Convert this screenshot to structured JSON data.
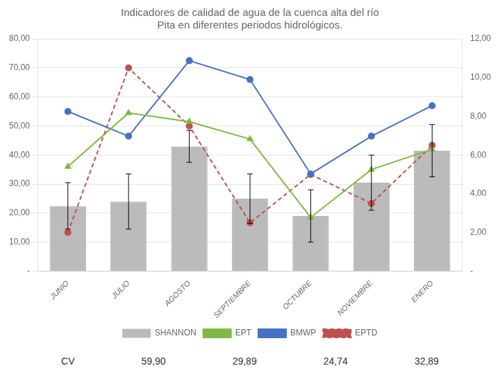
{
  "chart_data": {
    "type": "bar",
    "title": [
      "Indicadores de calidad de agua de la cuenca alta del río",
      "Pita en diferentes periodos hidrológicos."
    ],
    "categories": [
      "JUNIO",
      "JULIO",
      "AGOSTO",
      "SEPTIEMBRE",
      "OCTUBRE",
      "NOVIEMBRE",
      "ENERO"
    ],
    "series": [
      {
        "name": "SHANNON",
        "type": "bar",
        "color": "#bbbbbb",
        "values": [
          22.5,
          24.0,
          43.0,
          25.0,
          19.0,
          30.5,
          41.5
        ],
        "errors": [
          8.0,
          9.5,
          5.5,
          8.5,
          9.0,
          9.5,
          9.0
        ]
      },
      {
        "name": "EPT",
        "type": "line",
        "color": "#7fb942",
        "marker": "triangle",
        "values": [
          36.0,
          54.5,
          51.5,
          45.5,
          18.5,
          35.0,
          42.0
        ]
      },
      {
        "name": "BMWP",
        "type": "line",
        "color": "#4472c4",
        "marker": "circle",
        "values": [
          55.0,
          46.5,
          72.5,
          66.0,
          33.5,
          46.5,
          57.0
        ]
      },
      {
        "name": "EPTD",
        "type": "line",
        "color": "#c0504d",
        "marker": "circle",
        "line_style": "dashed",
        "axis": "y2",
        "values": [
          2.0,
          10.5,
          7.5,
          2.5,
          5.0,
          3.5,
          6.5
        ]
      }
    ],
    "ylim": [
      0,
      80
    ],
    "yticks": [
      {
        "value": 0,
        "label": "-"
      },
      {
        "value": 10,
        "label": "10,00"
      },
      {
        "value": 20,
        "label": "20,00"
      },
      {
        "value": 30,
        "label": "30,00"
      },
      {
        "value": 40,
        "label": "40,00"
      },
      {
        "value": 50,
        "label": "50,00"
      },
      {
        "value": 60,
        "label": "60,00"
      },
      {
        "value": 70,
        "label": "70,00"
      },
      {
        "value": 80,
        "label": "80,00"
      }
    ],
    "y2lim": [
      0,
      12
    ],
    "y2ticks": [
      {
        "value": 0,
        "label": "-"
      },
      {
        "value": 2,
        "label": "2,00"
      },
      {
        "value": 4,
        "label": "4,00"
      },
      {
        "value": 6,
        "label": "6,00"
      },
      {
        "value": 8,
        "label": "8,00"
      },
      {
        "value": 10,
        "label": "10,00"
      },
      {
        "value": 12,
        "label": "12,00"
      }
    ],
    "grid": true,
    "legend": "bottom",
    "annotations": [
      "CV",
      "59,90",
      "29,89",
      "24,74",
      "32,89"
    ]
  }
}
